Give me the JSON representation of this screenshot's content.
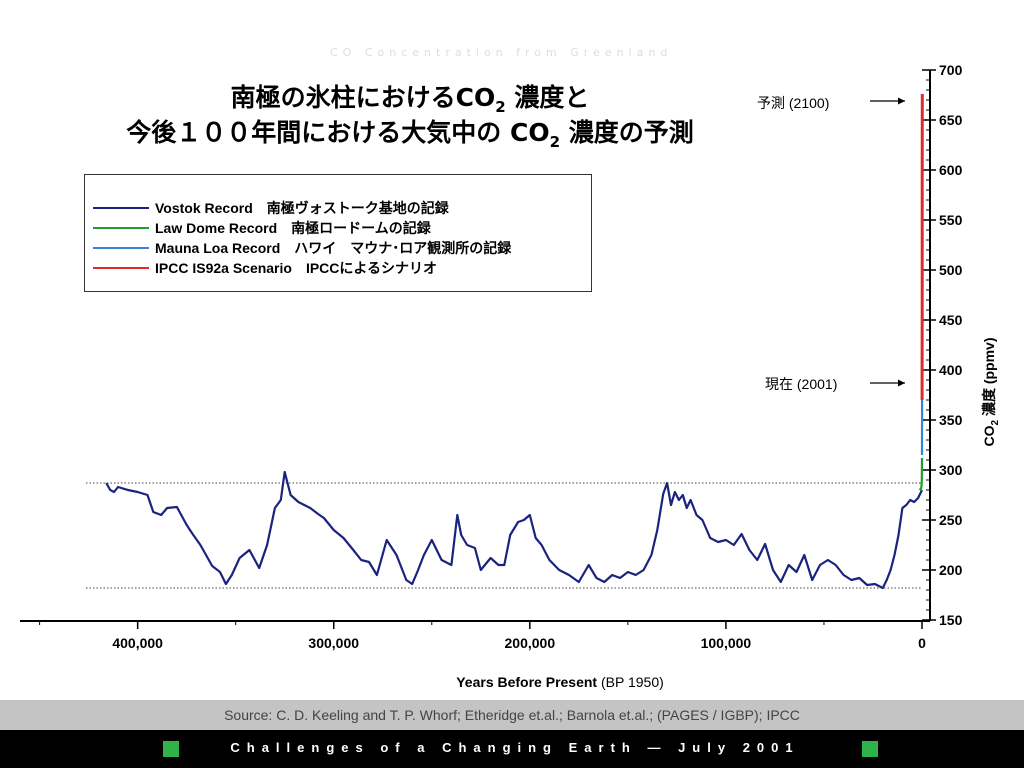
{
  "title": {
    "line1_main": "南極の氷柱におけるCO",
    "line1_sub": "2",
    "line1_tail": " 濃度と",
    "line2_main": "今後１００年間における大気中の CO",
    "line2_sub": "2",
    "line2_tail": " 濃度の予測"
  },
  "faded_subtitle": "CO Concentration from Greenland",
  "legend": {
    "items": [
      {
        "label": "Vostok Record　南極ヴォストーク基地の記録",
        "color": "#1a237e"
      },
      {
        "label": "Law Dome Record　南極ロードームの記録",
        "color": "#1f9e2a"
      },
      {
        "label": "Mauna Loa Record　ハワイ　マウナ･ロア観測所の記録",
        "color": "#3b82d8"
      },
      {
        "label": "IPCC IS92a Scenario　IPCCによるシナリオ",
        "color": "#e02a2a"
      }
    ]
  },
  "annotations": {
    "forecast": "予測 (2100)",
    "present": "現在 (2001)"
  },
  "axes": {
    "x_title_bold": "Years Before Present",
    "x_title_rest": " (BP 1950)",
    "y_title_pre": "CO",
    "y_title_sub": "2",
    "y_title_post": " 濃度 (ppmv)"
  },
  "source_text": "Source: C. D. Keeling and T. P. Whorf; Etheridge et.al.; Barnola et.al.;   (PAGES / IGBP);   IPCC",
  "footer_text": "Challenges of a Changing Earth — July 2001",
  "colors": {
    "vostok": "#1a237e",
    "law_dome": "#1f9e2a",
    "mauna_loa": "#3b82d8",
    "ipcc": "#e02a2a",
    "footer_square": "#2fb24a"
  },
  "chart_data": {
    "type": "line",
    "xlabel": "Years Before Present (BP 1950)",
    "ylabel": "CO2 濃度 (ppmv)",
    "xlim": [
      460000,
      0
    ],
    "ylim": [
      150,
      700
    ],
    "x_ticks": [
      400000,
      300000,
      200000,
      100000,
      0
    ],
    "x_tick_labels": [
      "400,000",
      "300,000",
      "200,000",
      "100,000",
      "0"
    ],
    "y_ticks": [
      150,
      200,
      250,
      300,
      350,
      400,
      450,
      500,
      550,
      600,
      650,
      700
    ],
    "y_tick_labels": [
      "150",
      "200",
      "250",
      "300",
      "350",
      "400",
      "450",
      "500",
      "550",
      "600",
      "650",
      "700"
    ],
    "reference_lines": [
      {
        "y": 287
      },
      {
        "y": 182
      }
    ],
    "series": [
      {
        "name": "Vostok Record",
        "color": "#1a237e",
        "x": [
          416000,
          414000,
          412000,
          410000,
          405000,
          400000,
          395000,
          392000,
          388000,
          385000,
          380000,
          375000,
          372000,
          368000,
          362000,
          358000,
          355000,
          352000,
          348000,
          343000,
          338000,
          334000,
          330000,
          327000,
          325000,
          322000,
          318000,
          312000,
          308000,
          305000,
          300000,
          295000,
          290000,
          286000,
          282000,
          278000,
          273000,
          268000,
          263000,
          260000,
          257000,
          254000,
          250000,
          245000,
          240000,
          237000,
          235000,
          232000,
          228000,
          225000,
          220000,
          216000,
          213000,
          210000,
          206000,
          203000,
          200000,
          197000,
          194000,
          190000,
          185000,
          180000,
          175000,
          170000,
          166000,
          162000,
          158000,
          154000,
          150000,
          146000,
          142000,
          138000,
          135000,
          132000,
          130000,
          128000,
          126000,
          124000,
          122000,
          120000,
          118000,
          115000,
          112000,
          108000,
          104000,
          100000,
          96000,
          92000,
          88000,
          84000,
          80000,
          76000,
          72000,
          68000,
          64000,
          60000,
          56000,
          52000,
          48000,
          44000,
          40000,
          36000,
          32000,
          28000,
          24000,
          20000,
          18000,
          16000,
          14000,
          12000,
          10000,
          8000,
          6000,
          4000,
          2000,
          0
        ],
        "values": [
          287,
          280,
          278,
          283,
          280,
          278,
          275,
          258,
          255,
          262,
          263,
          245,
          236,
          225,
          204,
          198,
          186,
          195,
          212,
          220,
          202,
          225,
          262,
          270,
          298,
          275,
          268,
          262,
          256,
          252,
          240,
          232,
          220,
          210,
          208,
          195,
          230,
          215,
          190,
          186,
          200,
          215,
          230,
          210,
          205,
          255,
          235,
          225,
          222,
          200,
          212,
          205,
          205,
          235,
          248,
          250,
          255,
          232,
          225,
          210,
          200,
          195,
          188,
          205,
          192,
          188,
          195,
          192,
          198,
          195,
          200,
          215,
          240,
          276,
          287,
          265,
          278,
          270,
          275,
          262,
          270,
          255,
          250,
          232,
          228,
          230,
          225,
          236,
          220,
          210,
          226,
          200,
          188,
          205,
          198,
          215,
          190,
          205,
          210,
          205,
          195,
          190,
          192,
          185,
          186,
          182,
          190,
          200,
          215,
          235,
          262,
          265,
          270,
          268,
          272,
          280
        ]
      },
      {
        "name": "Law Dome Record",
        "color": "#1f9e2a",
        "x": [
          1000,
          800,
          600,
          400,
          200,
          100,
          50,
          0
        ],
        "values": [
          280,
          281,
          280,
          282,
          285,
          290,
          300,
          312
        ]
      },
      {
        "name": "Mauna Loa Record",
        "color": "#3b82d8",
        "x": [
          0,
          -10,
          -20,
          -30,
          -40,
          -51
        ],
        "values": [
          315,
          325,
          338,
          352,
          360,
          370
        ]
      },
      {
        "name": "IPCC IS92a Scenario",
        "color": "#e02a2a",
        "x": [
          -51,
          -60,
          -80,
          -100,
          -120,
          -150
        ],
        "values": [
          370,
          400,
          460,
          520,
          590,
          676
        ]
      }
    ]
  }
}
